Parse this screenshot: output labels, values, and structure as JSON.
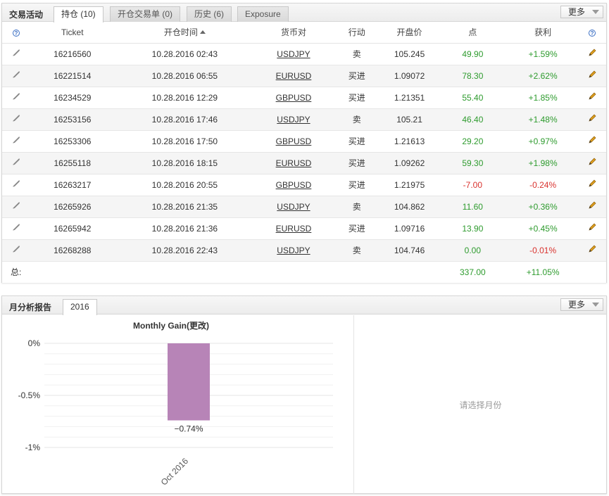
{
  "trades": {
    "title": "交易活动",
    "tabs": [
      {
        "label": "持仓 (10)"
      },
      {
        "label": "开仓交易单 (0)"
      },
      {
        "label": "历史 (6)"
      },
      {
        "label": "Exposure"
      }
    ],
    "more_label": "更多",
    "columns": {
      "ticket": "Ticket",
      "open_time": "开仓时间",
      "symbol": "货币对",
      "action": "行动",
      "open_price": "开盘价",
      "points": "点",
      "gain": "获利"
    },
    "rows": [
      {
        "ticket": "16216560",
        "open_time": "10.28.2016 02:43",
        "symbol": "USDJPY",
        "action": "卖",
        "open_price": "105.245",
        "points": "49.90",
        "gain": "+1.59%"
      },
      {
        "ticket": "16221514",
        "open_time": "10.28.2016 06:55",
        "symbol": "EURUSD",
        "action": "买进",
        "open_price": "1.09072",
        "points": "78.30",
        "gain": "+2.62%"
      },
      {
        "ticket": "16234529",
        "open_time": "10.28.2016 12:29",
        "symbol": "GBPUSD",
        "action": "买进",
        "open_price": "1.21351",
        "points": "55.40",
        "gain": "+1.85%"
      },
      {
        "ticket": "16253156",
        "open_time": "10.28.2016 17:46",
        "symbol": "USDJPY",
        "action": "卖",
        "open_price": "105.21",
        "points": "46.40",
        "gain": "+1.48%"
      },
      {
        "ticket": "16253306",
        "open_time": "10.28.2016 17:50",
        "symbol": "GBPUSD",
        "action": "买进",
        "open_price": "1.21613",
        "points": "29.20",
        "gain": "+0.97%"
      },
      {
        "ticket": "16255118",
        "open_time": "10.28.2016 18:15",
        "symbol": "EURUSD",
        "action": "买进",
        "open_price": "1.09262",
        "points": "59.30",
        "gain": "+1.98%"
      },
      {
        "ticket": "16263217",
        "open_time": "10.28.2016 20:55",
        "symbol": "GBPUSD",
        "action": "买进",
        "open_price": "1.21975",
        "points": "-7.00",
        "gain": "-0.24%"
      },
      {
        "ticket": "16265926",
        "open_time": "10.28.2016 21:35",
        "symbol": "USDJPY",
        "action": "卖",
        "open_price": "104.862",
        "points": "11.60",
        "gain": "+0.36%"
      },
      {
        "ticket": "16265942",
        "open_time": "10.28.2016 21:36",
        "symbol": "EURUSD",
        "action": "买进",
        "open_price": "1.09716",
        "points": "13.90",
        "gain": "+0.45%"
      },
      {
        "ticket": "16268288",
        "open_time": "10.28.2016 22:43",
        "symbol": "USDJPY",
        "action": "卖",
        "open_price": "104.746",
        "points": "0.00",
        "gain": "-0.01%"
      }
    ],
    "total_label": "总:",
    "total_points": "337.00",
    "total_gain": "+11.05%"
  },
  "monthly": {
    "title": "月分析报告",
    "tabs": [
      {
        "label": "2016"
      }
    ],
    "more_label": "更多",
    "empty_message": "请选择月份"
  },
  "colors": {
    "positive": "#2e9b2e",
    "negative": "#d9322e",
    "bar": "#b784b7"
  },
  "chart_data": {
    "type": "bar",
    "title": "Monthly Gain(更改)",
    "categories": [
      "Oct 2016"
    ],
    "values": [
      -0.74
    ],
    "value_labels": [
      "−0.74%"
    ],
    "yticks": [
      0,
      -0.5,
      -1
    ],
    "ytick_labels": [
      "0%",
      "-0.5%",
      "-1%"
    ],
    "ylim": [
      -1,
      0
    ],
    "grid": true,
    "xlabel": "",
    "ylabel": ""
  }
}
